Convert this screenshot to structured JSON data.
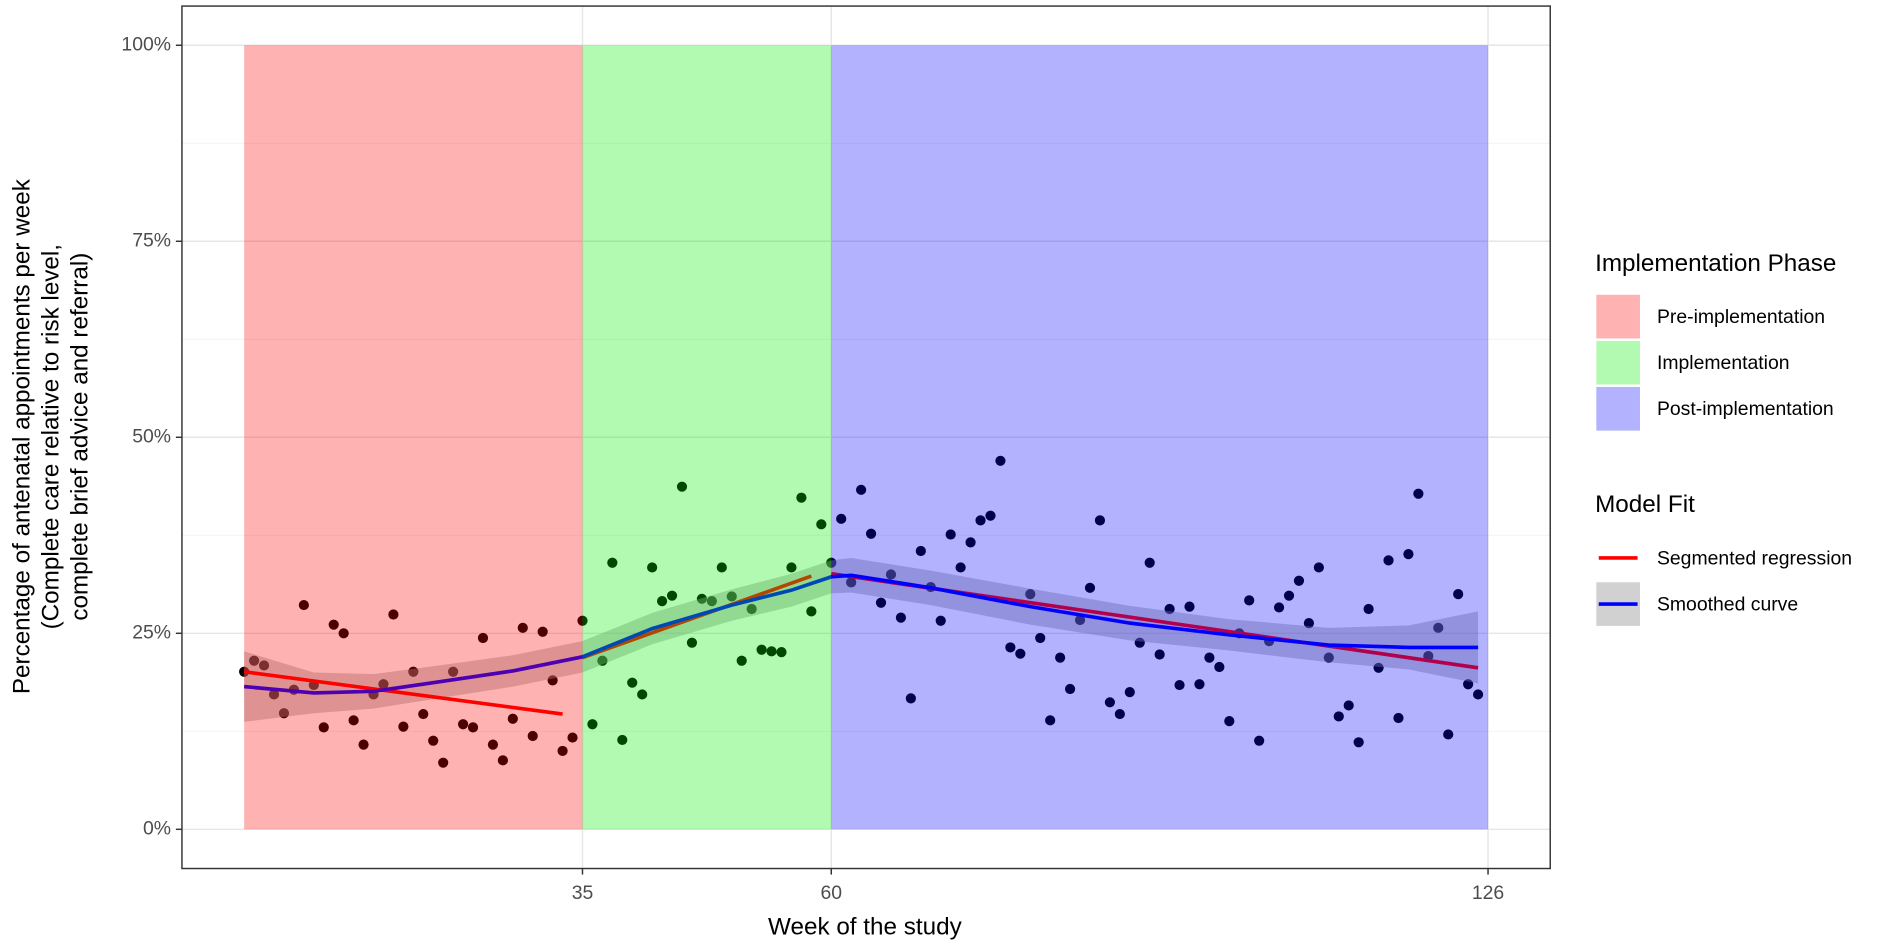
{
  "chart_data": {
    "type": "scatter",
    "x_label": "Week of the study",
    "y_label": [
      "Percentage of antenatal appointments per week",
      "(Complete care relative to risk level,",
      "complete brief advice and referral)"
    ],
    "xlim": [
      -5.25,
      132.25
    ],
    "xticks": [
      35,
      60,
      126
    ],
    "ylim": [
      -5,
      105
    ],
    "yticks": [
      {
        "value": 0,
        "label": "0%"
      },
      {
        "value": 25,
        "label": "25%"
      },
      {
        "value": 50,
        "label": "50%"
      },
      {
        "value": 75,
        "label": "75%"
      },
      {
        "value": 100,
        "label": "100%"
      }
    ],
    "grid": true,
    "legend_position": "right",
    "phase_legend_title": "Implementation Phase",
    "phases": [
      {
        "name": "Pre-implementation",
        "color": "#ff0000",
        "start": 1,
        "end": 35
      },
      {
        "name": "Implementation",
        "color": "#00ee00",
        "start": 35,
        "end": 60
      },
      {
        "name": "Post-implementation",
        "color": "#0000ff",
        "start": 60,
        "end": 126
      }
    ],
    "phase_ylim": [
      0,
      100
    ],
    "phase_opacity": 0.3,
    "points": {
      "color": "#000000",
      "x": [
        1,
        2,
        3,
        4,
        5,
        6,
        7,
        8,
        9,
        10,
        11,
        12,
        13,
        14,
        15,
        16,
        17,
        18,
        19,
        20,
        21,
        22,
        23,
        24,
        25,
        26,
        27,
        28,
        29,
        30,
        31,
        32,
        33,
        34,
        35,
        36,
        37,
        38,
        39,
        40,
        41,
        42,
        43,
        44,
        45,
        46,
        47,
        48,
        49,
        50,
        51,
        52,
        53,
        54,
        55,
        56,
        57,
        58,
        59,
        60,
        61,
        62,
        63,
        64,
        65,
        66,
        67,
        68,
        69,
        70,
        71,
        72,
        73,
        74,
        75,
        76,
        77,
        78,
        79,
        80,
        81,
        82,
        83,
        84,
        85,
        86,
        87,
        88,
        89,
        90,
        91,
        92,
        93,
        94,
        95,
        96,
        97,
        98,
        99,
        100,
        101,
        102,
        103,
        104,
        105,
        106,
        107,
        108,
        109,
        110,
        111,
        112,
        113,
        114,
        115,
        116,
        117,
        118,
        119,
        120,
        121,
        122,
        123,
        124,
        125
      ],
      "values": [
        20.1,
        21.5,
        20.9,
        17.2,
        14.8,
        17.8,
        28.6,
        18.4,
        13.0,
        26.1,
        25.0,
        13.9,
        10.8,
        17.2,
        18.5,
        27.4,
        13.1,
        20.1,
        14.7,
        11.3,
        8.5,
        20.1,
        13.4,
        13.0,
        24.4,
        10.8,
        8.8,
        14.1,
        25.7,
        11.9,
        25.2,
        19.0,
        10.0,
        11.7,
        26.6,
        13.4,
        21.5,
        34.0,
        11.4,
        18.7,
        17.2,
        33.4,
        29.1,
        29.8,
        43.7,
        23.8,
        29.4,
        29.1,
        33.4,
        29.7,
        21.5,
        28.1,
        22.9,
        22.7,
        22.6,
        33.4,
        42.3,
        27.8,
        38.9,
        34.0,
        39.6,
        31.5,
        43.3,
        37.7,
        28.9,
        32.5,
        27.0,
        16.7,
        35.5,
        30.9,
        26.6,
        37.6,
        33.4,
        36.6,
        39.4,
        40.0,
        47.0,
        23.2,
        22.4,
        30.0,
        24.4,
        13.9,
        21.9,
        17.9,
        26.7,
        30.8,
        39.4,
        16.2,
        14.7,
        17.5,
        23.8,
        34.0,
        22.3,
        28.1,
        18.4,
        28.4,
        18.5,
        21.9,
        20.7,
        13.8,
        25.0,
        29.2,
        11.3,
        24.0,
        28.3,
        29.8,
        31.7,
        26.3,
        33.4,
        21.9,
        14.4,
        15.8,
        11.1,
        28.1,
        20.6,
        34.3,
        14.2,
        35.1,
        42.8,
        22.1,
        25.7,
        12.1,
        30.0,
        18.5,
        17.2
      ]
    },
    "fit_legend_title": "Model Fit",
    "segmented_regression": {
      "name": "Segmented regression",
      "color": "#ff0000",
      "segments": [
        {
          "x": [
            1,
            33
          ],
          "values": [
            20.1,
            14.7
          ]
        },
        {
          "x": [
            35,
            58
          ],
          "values": [
            21.9,
            32.3
          ]
        },
        {
          "x": [
            60,
            125
          ],
          "values": [
            32.6,
            20.6
          ]
        }
      ]
    },
    "smoothed_curve": {
      "name": "Smoothed curve",
      "color": "#0000ff",
      "band_color": "#999999",
      "x": [
        1,
        8,
        14,
        20,
        28,
        35,
        42,
        50,
        56,
        60,
        62,
        70,
        80,
        90,
        100,
        110,
        118,
        125
      ],
      "values": [
        18.2,
        17.4,
        17.6,
        18.7,
        20.2,
        22.0,
        25.6,
        28.6,
        30.5,
        32.2,
        32.4,
        30.8,
        28.4,
        26.3,
        24.8,
        23.5,
        23.2,
        23.2
      ],
      "upper": [
        22.7,
        20.0,
        19.8,
        20.8,
        22.2,
        24.0,
        27.6,
        30.6,
        32.6,
        34.3,
        34.6,
        33.0,
        30.7,
        28.5,
        26.8,
        25.7,
        26.0,
        27.8
      ],
      "lower": [
        13.7,
        14.8,
        15.4,
        16.6,
        18.2,
        20.0,
        23.6,
        26.6,
        28.4,
        30.1,
        30.2,
        28.6,
        26.1,
        24.1,
        22.8,
        21.3,
        20.4,
        18.6
      ]
    }
  }
}
